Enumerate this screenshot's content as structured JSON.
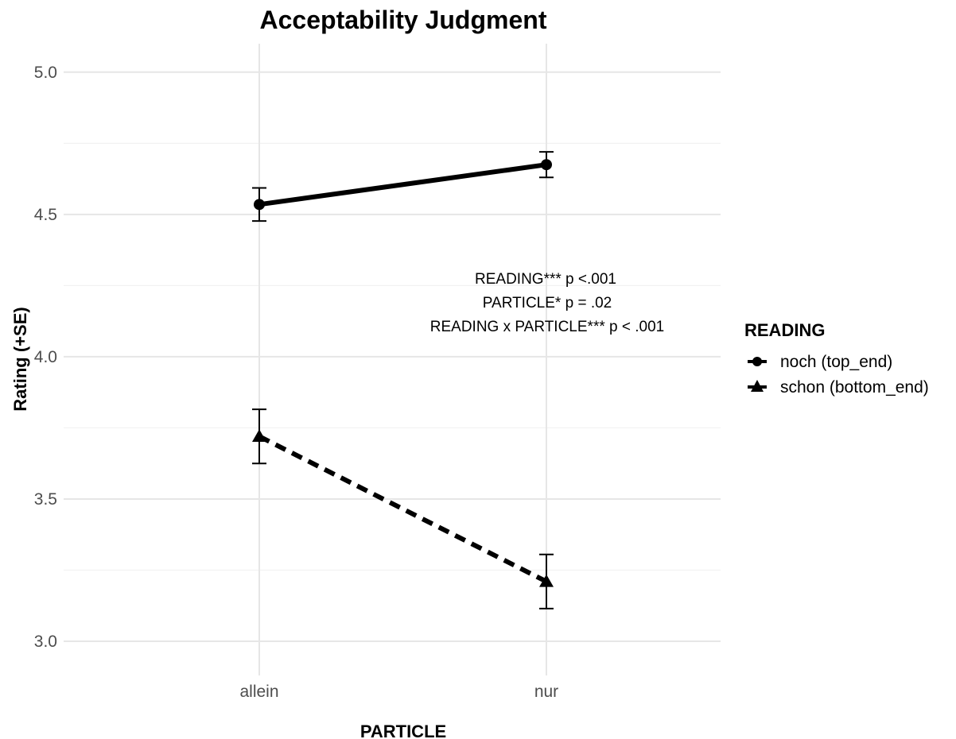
{
  "chart_data": {
    "type": "line",
    "title": "Acceptability Judgment",
    "xlabel": "PARTICLE",
    "ylabel": "Rating (+SE)",
    "categories": [
      "allein",
      "nur"
    ],
    "ylim": [
      2.88,
      5.1
    ],
    "yticks": [
      3.0,
      3.5,
      4.0,
      4.5,
      5.0
    ],
    "ytick_labels": [
      "3.0",
      "3.5",
      "4.0",
      "4.5",
      "5.0"
    ],
    "grid": true,
    "legend": {
      "title": "READING",
      "position": "right"
    },
    "series": [
      {
        "name": "noch (top_end)",
        "values": [
          4.535,
          4.675
        ],
        "se": [
          0.058,
          0.045
        ],
        "marker": "circle",
        "line_style": "solid"
      },
      {
        "name": "schon (bottom_end)",
        "values": [
          3.72,
          3.21
        ],
        "se": [
          0.095,
          0.095
        ],
        "marker": "triangle",
        "line_style": "dashed"
      }
    ],
    "annotations": [
      "READING*** p <.001",
      "PARTICLE* p = .02",
      "READING x PARTICLE*** p < .001"
    ]
  }
}
